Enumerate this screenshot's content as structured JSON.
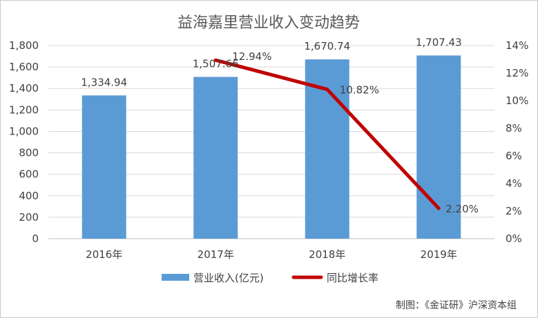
{
  "chart_data": {
    "type": "bar",
    "title": "益海嘉里营业收入变动趋势",
    "categories": [
      "2016年",
      "2017年",
      "2018年",
      "2019年"
    ],
    "series": [
      {
        "name": "营业收入(亿元)",
        "kind": "bar",
        "axis": "left",
        "color": "#5B9BD5",
        "values": [
          1334.94,
          1507.66,
          1670.74,
          1707.43
        ],
        "labels": [
          "1,334.94",
          "1,507.66",
          "1,670.74",
          "1,707.43"
        ]
      },
      {
        "name": "同比增长率",
        "kind": "line",
        "axis": "right",
        "color": "#C00000",
        "values": [
          null,
          12.94,
          10.82,
          2.2
        ],
        "labels": [
          "",
          "12.94%",
          "10.82%",
          "2.20%"
        ]
      }
    ],
    "y_left": {
      "ylim": [
        0,
        1800
      ],
      "ticks": [
        0,
        200,
        400,
        600,
        800,
        1000,
        1200,
        1400,
        1600,
        1800
      ],
      "tick_labels": [
        "0",
        "200",
        "400",
        "600",
        "800",
        "1,000",
        "1,200",
        "1,400",
        "1,600",
        "1,800"
      ]
    },
    "y_right": {
      "ylim": [
        0,
        14
      ],
      "ticks": [
        0,
        2,
        4,
        6,
        8,
        10,
        12,
        14
      ],
      "tick_labels": [
        "0%",
        "2%",
        "4%",
        "6%",
        "8%",
        "10%",
        "12%",
        "14%"
      ]
    },
    "grid": true,
    "legend_position": "bottom"
  },
  "credit": "制图：《金证研》沪深资本组"
}
